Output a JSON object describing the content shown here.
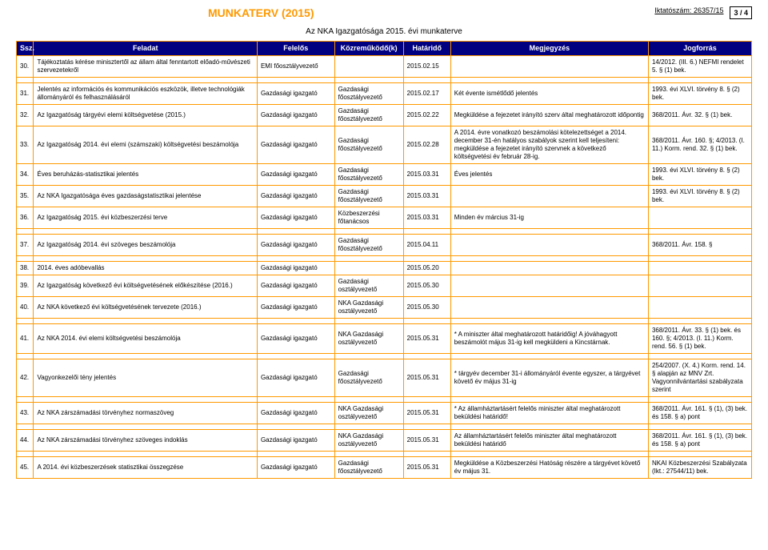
{
  "header": {
    "title": "MUNKATERV (2015)",
    "regLabel": "Iktatószám:",
    "regNum": "26357/15",
    "pageNum": "3 / 4",
    "subtitle": "Az NKA Igazgatósága 2015. évi munkaterve"
  },
  "columns": [
    "Ssz.",
    "Feladat",
    "Felelős",
    "Közreműködő(k)",
    "Határidő",
    "Megjegyzés",
    "Jogforrás"
  ],
  "rows": [
    {
      "n": "30.",
      "feladat": "Tájékoztatás kérése minisztertől az állam által fenntartott előadó-művészeti szervezetekről",
      "felelos": "EMI főosztályvezető",
      "kozrem": "",
      "hatar": "2015.02.15",
      "megj": "",
      "jog": "14/2012. (III. 6.) NEFMI rendelet 5. § (1) bek."
    },
    {
      "n": "31.",
      "feladat": "Jelentés az információs és kommunikációs eszközök, illetve technológiák állományáról és  felhasználásáról",
      "felelos": "Gazdasági igazgató",
      "kozrem": "Gazdasági főosztályvezető",
      "hatar": "2015.02.17",
      "megj": "Két évente ismétlődő jelentés",
      "jog": "1993. évi XLVI. törvény 8. § (2) bek."
    },
    {
      "n": "32.",
      "feladat": "Az Igazgatóság  tárgyévi elemi költségvetése (2015.)",
      "felelos": "Gazdasági igazgató",
      "kozrem": "Gazdasági főosztályvezető",
      "hatar": "2015.02.22",
      "megj": "Megküldése a fejezetet irányító szerv által meghatározott időpontig",
      "jog": "368/2011. Ávr. 32. § (1) bek."
    },
    {
      "n": "33.",
      "feladat": "Az Igazgatóság 2014. évi elemi (számszaki) költségvetési beszámolója",
      "felelos": "Gazdasági igazgató",
      "kozrem": "Gazdasági főosztályvezető",
      "hatar": "2015.02.28",
      "megj": "A 2014. évre vonatkozó beszámolási kötelezettséget a 2014. december 31-én hatályos szabályok szerint kell teljesíteni: megküldése a fejezetet irányító szervnek a következő költségvetési év február 28-ig.",
      "jog": "368/2011. Ávr. 160. §; 4/2013. (I. 11.) Korm. rend. 32. § (1) bek."
    },
    {
      "n": "34.",
      "feladat": "Éves beruházás-statisztikai jelentés",
      "felelos": "Gazdasági igazgató",
      "kozrem": "Gazdasági főosztályvezető",
      "hatar": "2015.03.31",
      "megj": "Éves jelentés",
      "jog": "1993. évi XLVI. törvény 8. § (2) bek."
    },
    {
      "n": "35.",
      "feladat": "Az NKA Igazgatósága éves gazdaságstatisztikai jelentése",
      "felelos": "Gazdasági igazgató",
      "kozrem": "Gazdasági főosztályvezető",
      "hatar": "2015.03.31",
      "megj": "",
      "jog": "1993. évi XLVI. törvény 8. § (2) bek."
    },
    {
      "n": "36.",
      "feladat": "Az Igazgatóság 2015. évi közbeszerzési terve",
      "felelos": "Gazdasági igazgató",
      "kozrem": "Közbeszerzési főtanácsos",
      "hatar": "2015.03.31",
      "megj": "Minden év március 31-ig",
      "jog": ""
    },
    {
      "n": "37.",
      "feladat": "Az Igazgatóság 2014. évi szöveges beszámolója",
      "felelos": "Gazdasági igazgató",
      "kozrem": "Gazdasági főosztályvezető",
      "hatar": "2015.04.11",
      "megj": "",
      "jog": "368/2011. Ávr. 158. §"
    },
    {
      "n": "38.",
      "feladat": "2014. éves adóbevallás",
      "felelos": "Gazdasági igazgató",
      "kozrem": "",
      "hatar": "2015.05.20",
      "megj": "",
      "jog": ""
    },
    {
      "n": "39.",
      "feladat": "Az Igazgatóság következő évi költségvetésének előkészítése (2016.)",
      "felelos": "Gazdasági igazgató",
      "kozrem": "Gazdasági osztályvezető",
      "hatar": "2015.05.30",
      "megj": "",
      "jog": ""
    },
    {
      "n": "40.",
      "feladat": "Az NKA következő évi  költségvetésének tervezete (2016.)",
      "felelos": "Gazdasági igazgató",
      "kozrem": "NKA Gazdasági osztályvezető",
      "hatar": "2015.05.30",
      "megj": "",
      "jog": ""
    },
    {
      "n": "41.",
      "feladat": "Az NKA 2014. évi elemi költségvetési beszámolója",
      "felelos": "Gazdasági igazgató",
      "kozrem": "NKA Gazdasági osztályvezető",
      "hatar": "2015.05.31",
      "megj": "* A miniszter által meghatározott határidőig! A jóváhagyott beszámolót május 31-ig kell megküldeni a Kincstárnak.",
      "jog": "368/2011. Ávr. 33. § (1) bek. és 160. §; 4/2013. (I. 11.) Korm. rend. 56. § (1) bek."
    },
    {
      "n": "42.",
      "feladat": "Vagyonkezelői tény jelentés",
      "felelos": "Gazdasági igazgató",
      "kozrem": "Gazdasági főosztályvezető",
      "hatar": "2015.05.31",
      "megj": "* tárgyév december 31-i állományáról évente egyszer, a tárgyévet követő év május 31-ig",
      "jog": "254/2007. (X. 4.) Korm. rend. 14. § alapján az MNV Zrt. Vagyonnilvántartási szabályzata szerint"
    },
    {
      "n": "43.",
      "feladat": "Az NKA zárszámadási törvényhez normaszöveg",
      "felelos": "Gazdasági igazgató",
      "kozrem": "NKA Gazdasági osztályvezető",
      "hatar": "2015.05.31",
      "megj": "* Az államháztartásért felelős miniszter által meghatározott beküldési határidő!",
      "jog": "368/2011. Ávr. 161. § (1), (3) bek. és 158. § a) pont"
    },
    {
      "n": "44.",
      "feladat": "Az NKA zárszámadási törvényhez szöveges indoklás",
      "felelos": "Gazdasági igazgató",
      "kozrem": "NKA Gazdasági osztályvezető",
      "hatar": "2015.05.31",
      "megj": "Az államháztartásért felelős miniszter által meghatározott beküldési határidő",
      "jog": "368/2011. Ávr. 161. § (1), (3) bek. és 158. § a) pont"
    },
    {
      "n": "45.",
      "feladat": "A 2014. évi közbeszerzések statisztikai összegzése",
      "felelos": "Gazdasági igazgató",
      "kozrem": "Gazdasági főosztályvezető",
      "hatar": "2015.05.31",
      "megj": "Megküldése a Közbeszerzési Hatóság részére a  tárgyévet követő év május 31.",
      "jog": "NKAI Közbeszerzési Szabályzata (Ikt.: 27544/11) bek."
    }
  ]
}
